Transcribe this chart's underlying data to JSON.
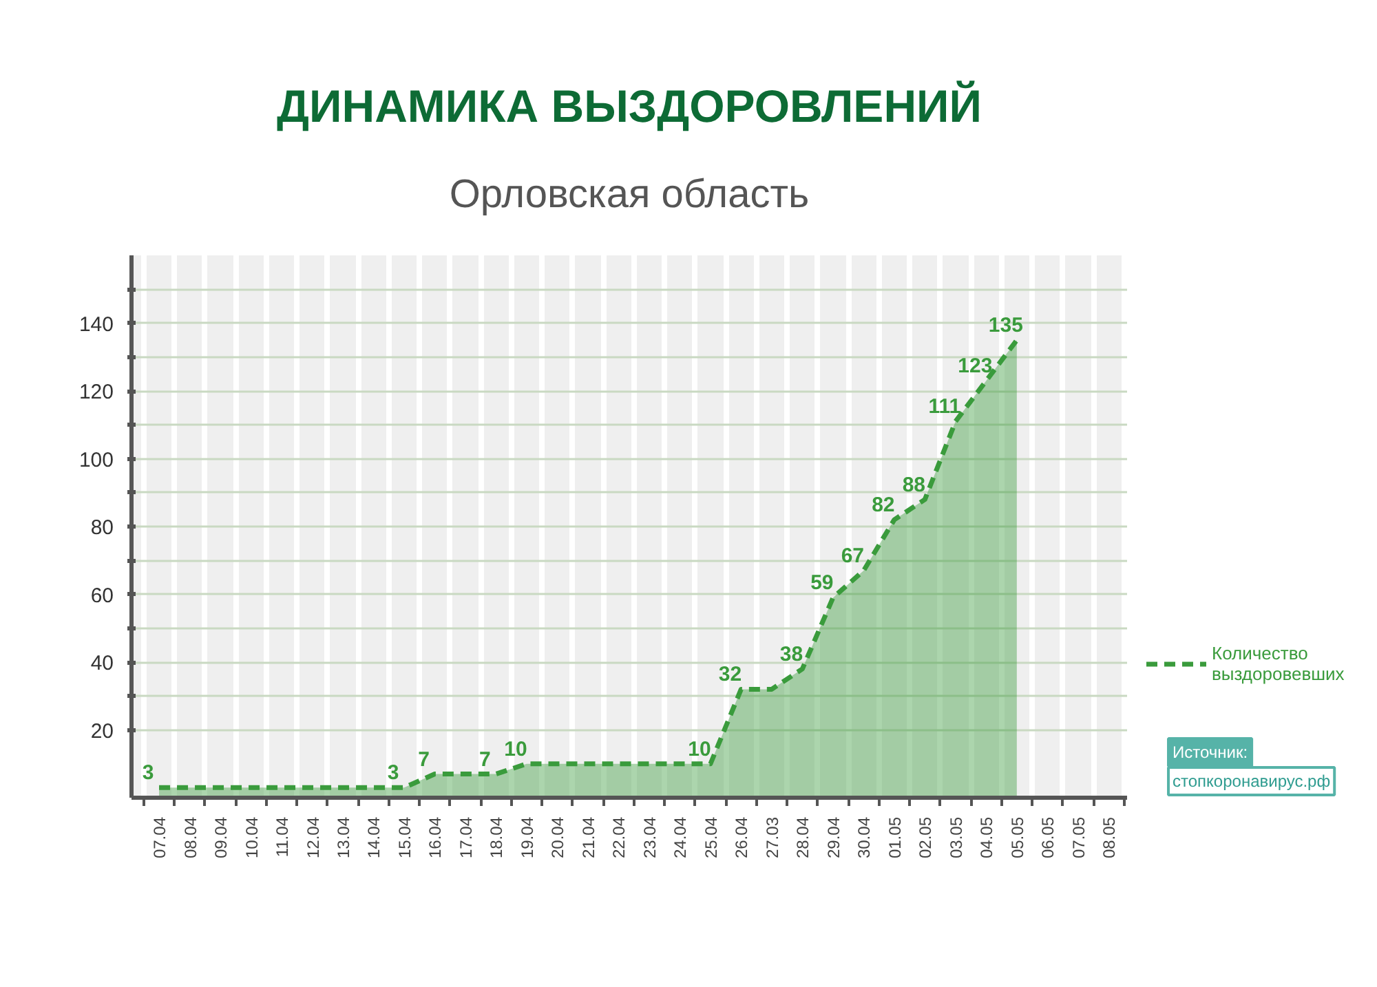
{
  "chart_data": {
    "type": "area",
    "title": "ДИНАМИКА ВЫЗДОРОВЛЕНИЙ",
    "subtitle": "Орловская область",
    "categories": [
      "07.04",
      "08.04",
      "09.04",
      "10.04",
      "11.04",
      "12.04",
      "13.04",
      "14.04",
      "15.04",
      "16.04",
      "17.04",
      "18.04",
      "19.04",
      "20.04",
      "21.04",
      "22.04",
      "23.04",
      "24.04",
      "25.04",
      "26.04",
      "27.03",
      "28.04",
      "29.04",
      "30.04",
      "01.05",
      "02.05",
      "03.05",
      "04.05",
      "05.05",
      "06.05",
      "07.05",
      "08.05"
    ],
    "series": [
      {
        "name": "Количество выздоровевших",
        "color": "#3a9b3c",
        "values": [
          3,
          3,
          3,
          3,
          3,
          3,
          3,
          3,
          3,
          7,
          7,
          7,
          10,
          10,
          10,
          10,
          10,
          10,
          10,
          32,
          32,
          38,
          59,
          67,
          82,
          88,
          111,
          123,
          135,
          null,
          null,
          null
        ],
        "value_labels": [
          "3",
          null,
          null,
          null,
          null,
          null,
          null,
          null,
          "3",
          "7",
          null,
          "7",
          "10",
          null,
          null,
          null,
          null,
          null,
          "10",
          "32",
          null,
          "38",
          "59",
          "67",
          "82",
          "88",
          "111",
          "123",
          "135",
          null,
          null,
          null
        ]
      }
    ],
    "ylim": [
      0,
      160
    ],
    "yticks": [
      20,
      {
        "value": 30,
        "label": null
      },
      40,
      {
        "value": 50,
        "label": null
      },
      60,
      {
        "value": 70,
        "label": null
      },
      80,
      {
        "value": 90,
        "label": null
      },
      100,
      {
        "value": 110,
        "label": null
      },
      120,
      {
        "value": 130,
        "label": null
      },
      140,
      {
        "value": 150,
        "label": null
      }
    ],
    "grid": true,
    "legend": "right",
    "line_style": "dashed",
    "annotations": [
      "Источник:",
      "стопкоронавирус.рф"
    ]
  }
}
